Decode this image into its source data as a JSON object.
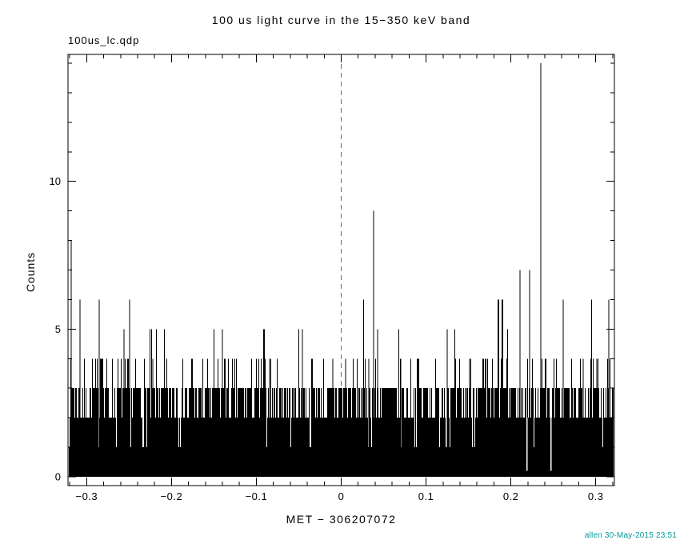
{
  "labels": {
    "file": "100us_lc.qdp",
    "credit": "allen 30-May-2015 23:51"
  },
  "colors": {
    "data": "#000000",
    "axis": "#000000",
    "zero_marker": "#009898",
    "credit_text": "#009898",
    "background": "#ffffff"
  },
  "chart_data": {
    "type": "bar",
    "title": "100 us light curve in the 15−350 keV band",
    "xlabel": "MET − 306207072",
    "ylabel": "Counts",
    "xlim": [
      -0.322,
      0.322
    ],
    "ylim": [
      -0.3,
      14.3
    ],
    "x_ticks": [
      -0.3,
      -0.2,
      -0.1,
      0,
      0.1,
      0.2,
      0.3
    ],
    "x_tick_labels": [
      "−0.3",
      "−0.2",
      "−0.1",
      "0",
      "0.1",
      "0.2",
      "0.3"
    ],
    "y_ticks": [
      0,
      5,
      10
    ],
    "y_tick_labels": [
      "0",
      "5",
      "10"
    ],
    "x_minor_step": 0.02,
    "y_minor_step": 1,
    "bin_width_s": 0.0001,
    "grid": false,
    "legend": "none",
    "marker_line": {
      "x": 0,
      "style": "dashed",
      "color": "#009898"
    },
    "noise_model": {
      "description": "Poisson-like background of 100us bins; counts mostly 0-3 forming a solid black band up to ~2 with frequent 3s and occasional 4-6",
      "seed": 7,
      "solid_band_top": 1,
      "cumulative_levels": [
        [
          1,
          0.05
        ],
        [
          2,
          0.38
        ],
        [
          3,
          0.9
        ],
        [
          4,
          0.985
        ],
        [
          5,
          0.9965
        ],
        [
          6,
          1.0
        ]
      ]
    },
    "gaps": [
      {
        "x": 0.218,
        "top": 2.0,
        "bottom": 0.2
      },
      {
        "x": 0.247,
        "top": 2.0,
        "bottom": 0.2
      }
    ],
    "spikes": [
      {
        "x": -0.318,
        "h": 8
      },
      {
        "x": -0.308,
        "h": 6
      },
      {
        "x": -0.285,
        "h": 6
      },
      {
        "x": -0.282,
        "h": 4,
        "w": 4
      },
      {
        "x": -0.256,
        "h": 5
      },
      {
        "x": -0.249,
        "h": 6
      },
      {
        "x": -0.222,
        "h": 4
      },
      {
        "x": -0.176,
        "h": 4,
        "w": 2
      },
      {
        "x": -0.14,
        "h": 5
      },
      {
        "x": -0.137,
        "h": 4,
        "w": 2
      },
      {
        "x": -0.091,
        "h": 5,
        "w": 2
      },
      {
        "x": -0.084,
        "h": 4
      },
      {
        "x": -0.046,
        "h": 5
      },
      {
        "x": -0.01,
        "h": 4
      },
      {
        "x": 0.005,
        "h": 4
      },
      {
        "x": 0.033,
        "h": 4
      },
      {
        "x": 0.038,
        "h": 9
      },
      {
        "x": 0.043,
        "h": 5
      },
      {
        "x": 0.07,
        "h": 4
      },
      {
        "x": 0.09,
        "h": 4,
        "w": 2
      },
      {
        "x": 0.125,
        "h": 5
      },
      {
        "x": 0.151,
        "h": 4
      },
      {
        "x": 0.185,
        "h": 6,
        "w": 2
      },
      {
        "x": 0.19,
        "h": 6,
        "w": 2
      },
      {
        "x": 0.211,
        "h": 7
      },
      {
        "x": 0.222,
        "h": 7
      },
      {
        "x": 0.235,
        "h": 14
      },
      {
        "x": 0.241,
        "h": 4,
        "w": 2
      },
      {
        "x": 0.262,
        "h": 6
      },
      {
        "x": 0.285,
        "h": 4
      },
      {
        "x": 0.301,
        "h": 4
      },
      {
        "x": 0.315,
        "h": 6
      }
    ]
  }
}
